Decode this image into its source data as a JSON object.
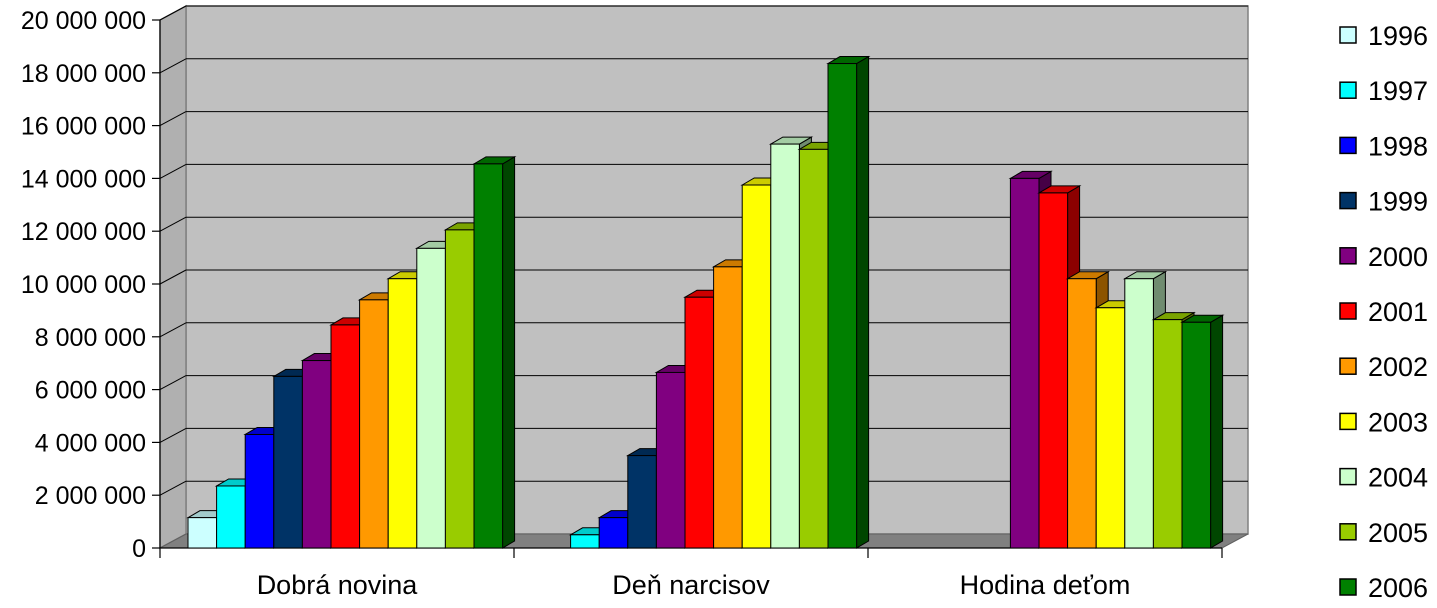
{
  "chart_data": {
    "type": "bar",
    "title": "",
    "xlabel": "",
    "ylabel": "",
    "ylim": [
      0,
      20000000
    ],
    "yticks": [
      0,
      2000000,
      4000000,
      6000000,
      8000000,
      10000000,
      12000000,
      14000000,
      16000000,
      18000000,
      20000000
    ],
    "ytick_labels": [
      "0",
      "2 000 000",
      "4 000 000",
      "6 000 000",
      "8 000 000",
      "10 000 000",
      "12 000 000",
      "14 000 000",
      "16 000 000",
      "18 000 000",
      "20 000 000"
    ],
    "categories": [
      "Dobrá novina",
      "Deň narcisov",
      "Hodina deťom"
    ],
    "grid": true,
    "legend_position": "right",
    "three_d": true,
    "series": [
      {
        "name": "1996",
        "color": "#ccffff",
        "values": [
          1150000,
          null,
          null
        ]
      },
      {
        "name": "1997",
        "color": "#00ffff",
        "values": [
          2350000,
          500000,
          null
        ]
      },
      {
        "name": "1998",
        "color": "#0000ff",
        "values": [
          4300000,
          1150000,
          null
        ]
      },
      {
        "name": "1999",
        "color": "#003366",
        "values": [
          6500000,
          3500000,
          null
        ]
      },
      {
        "name": "2000",
        "color": "#800080",
        "values": [
          7100000,
          6650000,
          14000000
        ]
      },
      {
        "name": "2001",
        "color": "#ff0000",
        "values": [
          8450000,
          9500000,
          13450000
        ]
      },
      {
        "name": "2002",
        "color": "#ff9900",
        "values": [
          9400000,
          10650000,
          10200000
        ]
      },
      {
        "name": "2003",
        "color": "#ffff00",
        "values": [
          10200000,
          13750000,
          9100000
        ]
      },
      {
        "name": "2004",
        "color": "#ccffcc",
        "values": [
          11350000,
          15300000,
          10200000
        ]
      },
      {
        "name": "2005",
        "color": "#99cc00",
        "values": [
          12050000,
          15100000,
          8650000
        ]
      },
      {
        "name": "2006",
        "color": "#008000",
        "values": [
          14550000,
          18350000,
          8550000
        ]
      }
    ]
  }
}
